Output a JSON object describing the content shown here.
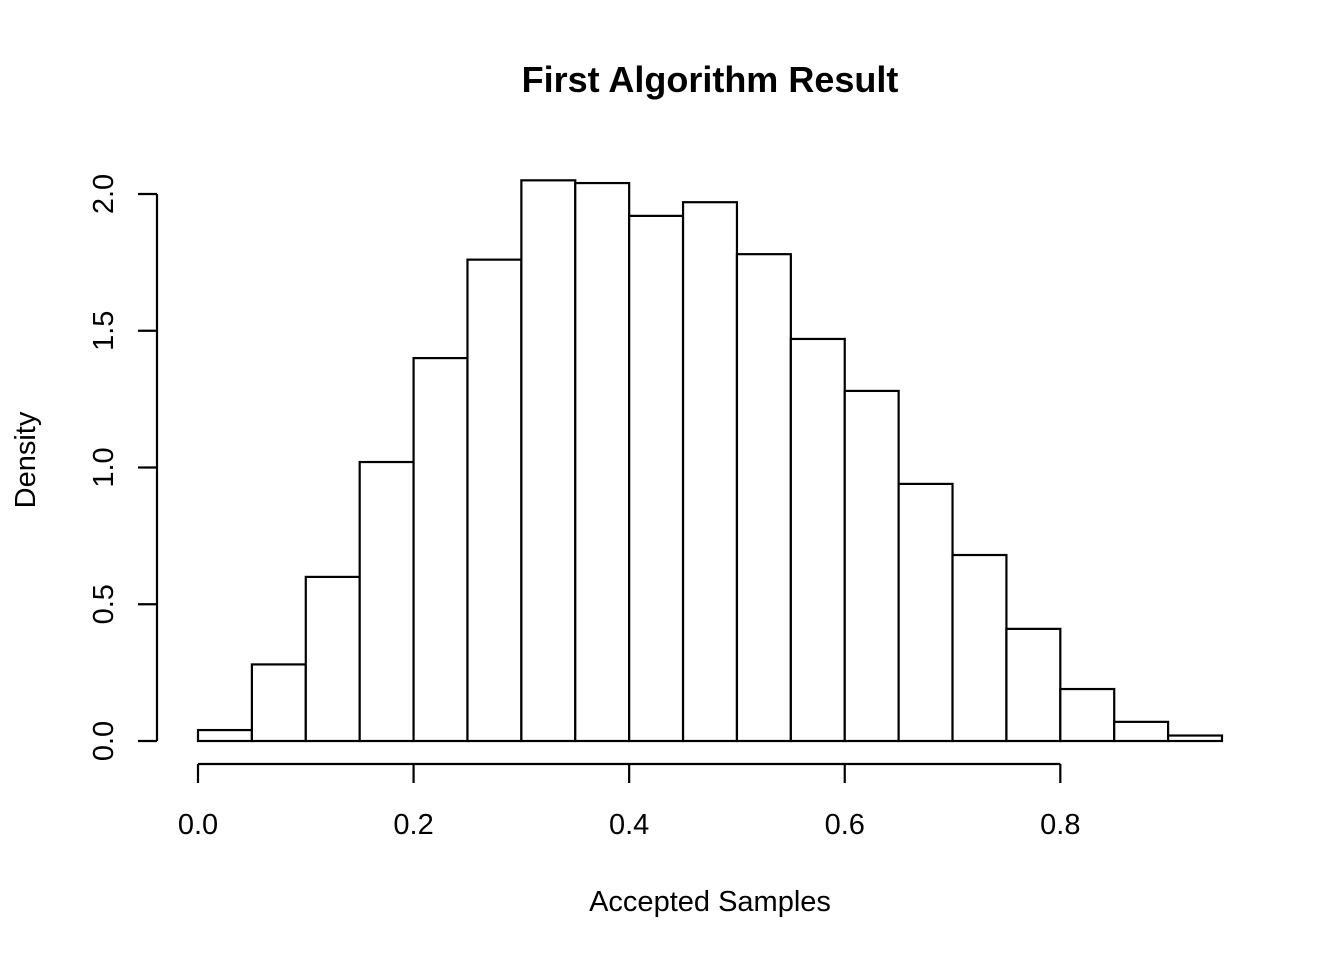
{
  "chart_data": {
    "type": "bar",
    "title": "First Algorithm Result",
    "xlabel": "Accepted Samples",
    "ylabel": "Density",
    "bin_edges": [
      0.0,
      0.05,
      0.1,
      0.15,
      0.2,
      0.25,
      0.3,
      0.35,
      0.4,
      0.45,
      0.5,
      0.55,
      0.6,
      0.65,
      0.7,
      0.75,
      0.8,
      0.85,
      0.9,
      0.95
    ],
    "values": [
      0.04,
      0.28,
      0.6,
      1.02,
      1.4,
      1.76,
      2.05,
      2.04,
      1.92,
      1.97,
      1.78,
      1.47,
      1.28,
      0.94,
      0.68,
      0.41,
      0.19,
      0.07,
      0.02
    ],
    "x_ticks": [
      0.0,
      0.2,
      0.4,
      0.6,
      0.8
    ],
    "x_tick_labels": [
      "0.0",
      "0.2",
      "0.4",
      "0.6",
      "0.8"
    ],
    "y_ticks": [
      0.0,
      0.5,
      1.0,
      1.5,
      2.0
    ],
    "y_tick_labels": [
      "0.0",
      "0.5",
      "1.0",
      "1.5",
      "2.0"
    ],
    "xlim": [
      0.0,
      0.95
    ],
    "ylim": [
      0.0,
      2.0
    ],
    "grid": false,
    "legend": "none"
  }
}
